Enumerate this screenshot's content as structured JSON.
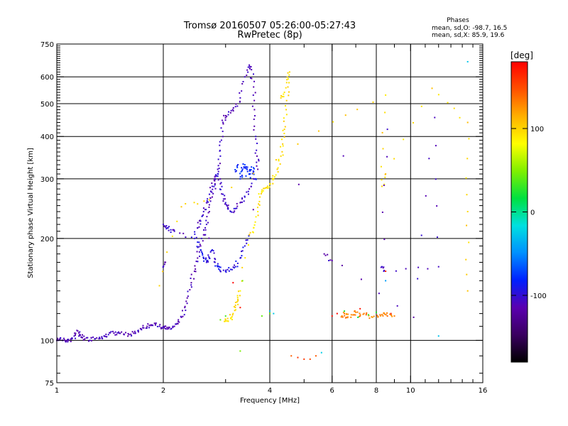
{
  "chart_data": {
    "type": "scatter",
    "title_line1": "Tromsø 20160507 05:26:00-05:27:43",
    "title_line2": "RwPretec (8p)",
    "phases_block": {
      "heading": "Phases",
      "line_o": "mean, sd,O: -98.7, 16.5",
      "line_x": "mean, sd,X:  85.9, 19.6"
    },
    "xlabel": "Frequency [MHz]",
    "ylabel": "Stationary phase Virtual Height [km]",
    "x_scale": "log",
    "y_scale": "log",
    "xlim": [
      1,
      16
    ],
    "ylim": [
      75,
      750
    ],
    "x_ticks": [
      {
        "value": 1,
        "label": "1"
      },
      {
        "value": 2,
        "label": "2"
      },
      {
        "value": 4,
        "label": "4"
      },
      {
        "value": 6,
        "label": "6"
      },
      {
        "value": 8,
        "label": "8"
      },
      {
        "value": 10,
        "label": "10"
      },
      {
        "value": 16,
        "label": "16"
      }
    ],
    "y_ticks": [
      {
        "value": 75,
        "label": "75"
      },
      {
        "value": 100,
        "label": "100"
      },
      {
        "value": 200,
        "label": "200"
      },
      {
        "value": 300,
        "label": "300"
      },
      {
        "value": 400,
        "label": "400"
      },
      {
        "value": 500,
        "label": "500"
      },
      {
        "value": 600,
        "label": "600"
      },
      {
        "value": 750,
        "label": "750"
      }
    ],
    "x_gridlines": [
      2,
      4,
      6,
      8,
      10
    ],
    "y_gridlines": [
      100,
      200,
      300,
      400,
      500,
      600
    ],
    "grid": true,
    "colorbar": {
      "label": "[deg]",
      "range": [
        -180,
        180
      ],
      "ticks": [
        {
          "value": 100,
          "label": "100"
        },
        {
          "value": 0,
          "label": "0"
        },
        {
          "value": -100,
          "label": "-100"
        }
      ],
      "colors": [
        "#000000",
        "#3a0060",
        "#5a00b0",
        "#0020ff",
        "#0090ff",
        "#00e0e0",
        "#00e040",
        "#80f000",
        "#ffff00",
        "#ffb000",
        "#ff5000",
        "#ff0000"
      ]
    },
    "traces": [
      {
        "name": "",
        "phase": -110,
        "points": [
          [
            1.0,
            100
          ],
          [
            1.02,
            101
          ],
          [
            1.04,
            100
          ],
          [
            1.06,
            99
          ],
          [
            1.08,
            100
          ],
          [
            1.1,
            101
          ],
          [
            1.12,
            103
          ],
          [
            1.14,
            107
          ],
          [
            1.16,
            104
          ],
          [
            1.18,
            102
          ],
          [
            1.2,
            101
          ],
          [
            1.24,
            100
          ],
          [
            1.28,
            101
          ],
          [
            1.32,
            102
          ],
          [
            1.36,
            103
          ],
          [
            1.4,
            104
          ],
          [
            1.45,
            105
          ],
          [
            1.5,
            105
          ],
          [
            1.55,
            104
          ],
          [
            1.6,
            104
          ],
          [
            1.65,
            105
          ],
          [
            1.7,
            107
          ],
          [
            1.75,
            109
          ],
          [
            1.8,
            110
          ],
          [
            1.85,
            111
          ],
          [
            1.9,
            111
          ],
          [
            1.95,
            110
          ],
          [
            2.0,
            109
          ],
          [
            2.05,
            108
          ],
          [
            2.1,
            108
          ],
          [
            2.15,
            110
          ],
          [
            2.2,
            112
          ],
          [
            2.25,
            117
          ],
          [
            2.3,
            125
          ],
          [
            2.35,
            135
          ],
          [
            2.4,
            148
          ],
          [
            2.45,
            160
          ],
          [
            2.5,
            175
          ],
          [
            2.55,
            190
          ],
          [
            2.6,
            205
          ],
          [
            2.65,
            220
          ],
          [
            2.7,
            240
          ],
          [
            2.75,
            265
          ],
          [
            2.8,
            290
          ],
          [
            2.85,
            320
          ],
          [
            2.9,
            350
          ],
          [
            2.92,
            390
          ],
          [
            2.95,
            440
          ],
          [
            3.0,
            460
          ],
          [
            3.1,
            470
          ],
          [
            3.2,
            490
          ],
          [
            3.3,
            520
          ],
          [
            3.4,
            600
          ],
          [
            3.5,
            650
          ],
          [
            3.55,
            630
          ],
          [
            3.6,
            560
          ],
          [
            3.62,
            480
          ],
          [
            3.65,
            400
          ],
          [
            3.68,
            350
          ],
          [
            3.7,
            320
          ]
        ]
      },
      {
        "name": "",
        "phase": -105,
        "points": [
          [
            2.0,
            220
          ],
          [
            2.05,
            215
          ],
          [
            2.1,
            212
          ],
          [
            2.15,
            210
          ],
          [
            2.45,
            200
          ],
          [
            2.5,
            215
          ],
          [
            2.55,
            225
          ],
          [
            2.6,
            240
          ],
          [
            2.65,
            255
          ],
          [
            2.7,
            270
          ],
          [
            2.75,
            285
          ],
          [
            2.8,
            300
          ],
          [
            2.85,
            310
          ],
          [
            2.9,
            290
          ],
          [
            2.95,
            270
          ],
          [
            3.0,
            255
          ],
          [
            3.05,
            245
          ],
          [
            3.1,
            240
          ],
          [
            3.2,
            245
          ],
          [
            3.3,
            255
          ],
          [
            3.4,
            265
          ],
          [
            3.5,
            280
          ],
          [
            3.6,
            300
          ]
        ]
      },
      {
        "name": "",
        "phase": -95,
        "points": [
          [
            2.5,
            195
          ],
          [
            2.55,
            185
          ],
          [
            2.6,
            175
          ],
          [
            2.65,
            170
          ],
          [
            2.7,
            175
          ],
          [
            2.75,
            185
          ],
          [
            2.8,
            170
          ],
          [
            2.85,
            165
          ],
          [
            2.9,
            160
          ],
          [
            3.0,
            160
          ],
          [
            3.1,
            162
          ],
          [
            3.2,
            165
          ],
          [
            3.3,
            175
          ],
          [
            3.4,
            190
          ],
          [
            3.5,
            205
          ]
        ]
      },
      {
        "name": "",
        "phase": -80,
        "points": [
          [
            3.3,
            300
          ],
          [
            3.35,
            320
          ],
          [
            3.4,
            330
          ],
          [
            3.45,
            320
          ],
          [
            3.5,
            310
          ],
          [
            3.55,
            325
          ],
          [
            3.6,
            315
          ],
          [
            3.65,
            300
          ],
          [
            3.2,
            315
          ],
          [
            3.25,
            330
          ]
        ]
      },
      {
        "name": "",
        "phase": 95,
        "points": [
          [
            3.0,
            115
          ],
          [
            3.05,
            114
          ],
          [
            3.1,
            116
          ],
          [
            3.15,
            120
          ],
          [
            3.2,
            127
          ],
          [
            3.25,
            132
          ],
          [
            3.3,
            140
          ],
          [
            3.5,
            205
          ],
          [
            3.6,
            215
          ],
          [
            3.7,
            240
          ],
          [
            3.75,
            265
          ],
          [
            3.8,
            278
          ],
          [
            3.9,
            282
          ],
          [
            4.0,
            290
          ],
          [
            4.1,
            300
          ],
          [
            4.2,
            320
          ],
          [
            4.3,
            350
          ],
          [
            4.35,
            380
          ],
          [
            4.4,
            420
          ],
          [
            4.45,
            480
          ],
          [
            4.5,
            560
          ],
          [
            4.55,
            620
          ],
          [
            4.4,
            540
          ],
          [
            4.3,
            520
          ]
        ]
      },
      {
        "name": "",
        "phase": 150,
        "points": [
          [
            4.6,
            90
          ],
          [
            4.8,
            89
          ],
          [
            5.0,
            88
          ],
          [
            5.2,
            88
          ],
          [
            5.4,
            90
          ]
        ]
      },
      {
        "name": "",
        "phase": -20,
        "points": [
          [
            5.6,
            92
          ],
          [
            4.1,
            120
          ],
          [
            4.0,
            122
          ]
        ]
      },
      {
        "name": "",
        "phase": 100,
        "points": [
          [
            1.95,
            145
          ],
          [
            2.25,
            248
          ],
          [
            2.7,
            260
          ],
          [
            5.5,
            415
          ],
          [
            8.5,
            530
          ],
          [
            8.3,
            285
          ],
          [
            8.5,
            310
          ],
          [
            11.5,
            555
          ],
          [
            14.5,
            440
          ],
          [
            14.5,
            240
          ],
          [
            14.5,
            140
          ]
        ]
      },
      {
        "name": "",
        "phase": -110,
        "points": [
          [
            2.02,
            170
          ],
          [
            2.0,
            165
          ],
          [
            8.6,
            420
          ],
          [
            8.3,
            165
          ],
          [
            8.4,
            160
          ],
          [
            12.0,
            165
          ],
          [
            11.7,
            455
          ],
          [
            10.2,
            117
          ],
          [
            5.7,
            180
          ],
          [
            6.0,
            172
          ]
        ]
      },
      {
        "name": "",
        "phase": -35,
        "points": [
          [
            14.5,
            665
          ],
          [
            12.0,
            103
          ],
          [
            8.5,
            150
          ]
        ]
      },
      {
        "name": "",
        "phase": 130,
        "points": [
          [
            6.4,
            118
          ],
          [
            6.5,
            120
          ],
          [
            6.6,
            117
          ],
          [
            6.8,
            119
          ],
          [
            7.0,
            121
          ],
          [
            7.2,
            118
          ],
          [
            7.5,
            120
          ],
          [
            7.8,
            117
          ],
          [
            8.2,
            119
          ],
          [
            8.4,
            120
          ],
          [
            8.6,
            118
          ],
          [
            9.0,
            118
          ]
        ]
      },
      {
        "name": "",
        "phase": 20,
        "points": [
          [
            6.5,
            122
          ],
          [
            7.1,
            117
          ],
          [
            7.6,
            119
          ],
          [
            8.0,
            121
          ]
        ]
      },
      {
        "name": "",
        "phase": 175,
        "points": [
          [
            6.0,
            118
          ],
          [
            6.2,
            120
          ],
          [
            7.2,
            124
          ],
          [
            8.8,
            120
          ],
          [
            8.5,
            160
          ],
          [
            3.15,
            148
          ],
          [
            3.3,
            125
          ]
        ]
      },
      {
        "name": "",
        "phase": 40,
        "points": [
          [
            3.3,
            93
          ],
          [
            3.35,
            150
          ],
          [
            2.9,
            115
          ],
          [
            3.0,
            118
          ],
          [
            3.8,
            118
          ],
          [
            4.0,
            120
          ]
        ]
      }
    ]
  }
}
